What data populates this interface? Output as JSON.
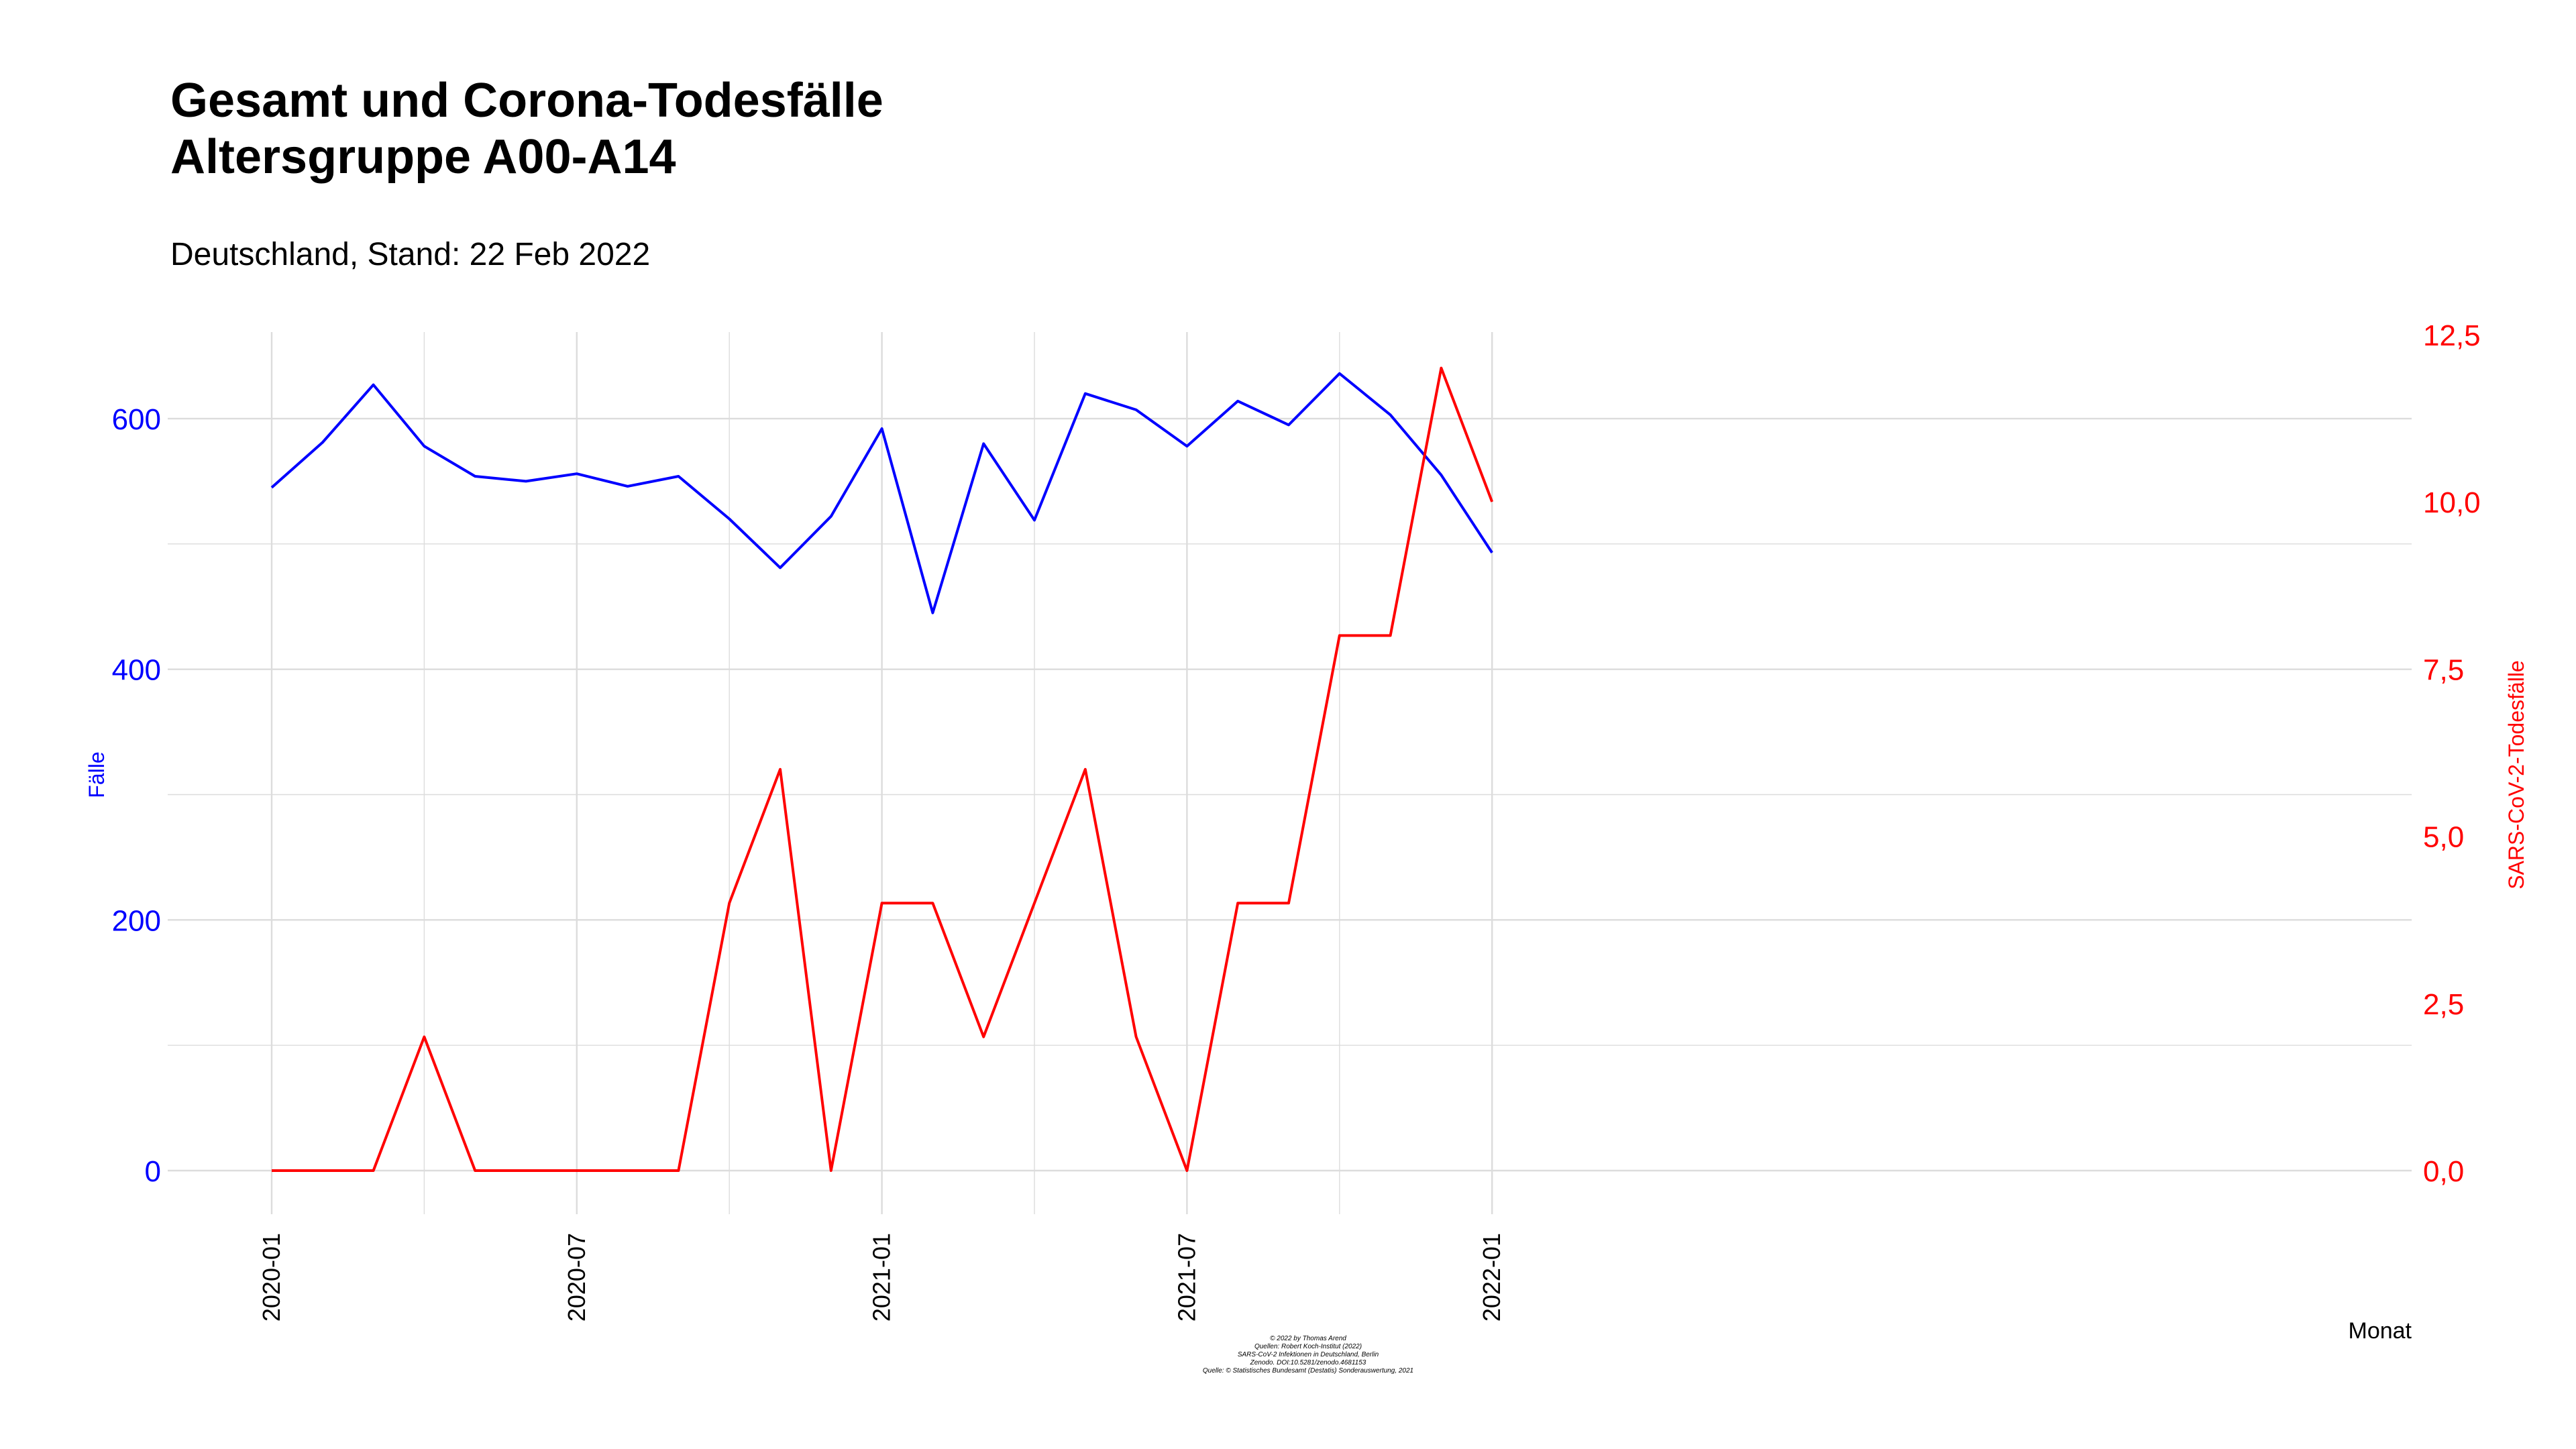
{
  "chart_data": {
    "type": "line",
    "title_line1": "Gesamt und Corona-Todesfälle",
    "title_line2": "Altersgruppe A00-A14",
    "subtitle": "Deutschland, Stand: 22 Feb 2022",
    "xlabel": "Monat",
    "ylabel_left": "Fälle",
    "ylabel_right": "SARS-CoV-2-Todesfälle",
    "x": [
      "2020-01",
      "2020-02",
      "2020-03",
      "2020-04",
      "2020-05",
      "2020-06",
      "2020-07",
      "2020-08",
      "2020-09",
      "2020-10",
      "2020-11",
      "2020-12",
      "2021-01",
      "2021-02",
      "2021-03",
      "2021-04",
      "2021-05",
      "2021-06",
      "2021-07",
      "2021-08",
      "2021-09",
      "2021-10",
      "2021-11",
      "2021-12",
      "2022-01"
    ],
    "x_tick_labels": [
      "2020-01",
      "2020-07",
      "2021-01",
      "2021-07",
      "2022-01"
    ],
    "ylim_left": [
      0,
      600
    ],
    "y_ticks_left": [
      "0",
      "200",
      "400",
      "600"
    ],
    "ylim_right": [
      0,
      12.5
    ],
    "y_ticks_right": [
      "0,0",
      "2,5",
      "5,0",
      "7,5",
      "10,0",
      "12,5"
    ],
    "grid": true,
    "series": [
      {
        "name": "Fälle",
        "axis": "left",
        "color": "#0000ff",
        "values": [
          545,
          581,
          627,
          578,
          554,
          550,
          556,
          546,
          554,
          520,
          481,
          522,
          592,
          445,
          580,
          519,
          620,
          607,
          578,
          614,
          595,
          636,
          603,
          555,
          493
        ]
      },
      {
        "name": "SARS-CoV-2-Todesfälle",
        "axis": "right",
        "color": "#ff0000",
        "values": [
          0,
          0,
          0,
          2,
          0,
          0,
          0,
          0,
          0,
          4,
          6,
          0,
          4,
          4,
          2,
          4,
          6,
          2,
          0,
          4,
          4,
          8,
          8,
          12,
          10
        ]
      }
    ]
  },
  "caption": [
    "© 2022 by Thomas Arend",
    "Quellen: Robert Koch-Institut (2022)",
    "SARS-CoV-2 Infektionen in Deutschland, Berlin",
    "Zenodo. DOI:10.5281/zenodo.4681153",
    "Quelle: © Statistisches Bundesamt (Destatis) Sonderauswertung, 2021"
  ]
}
